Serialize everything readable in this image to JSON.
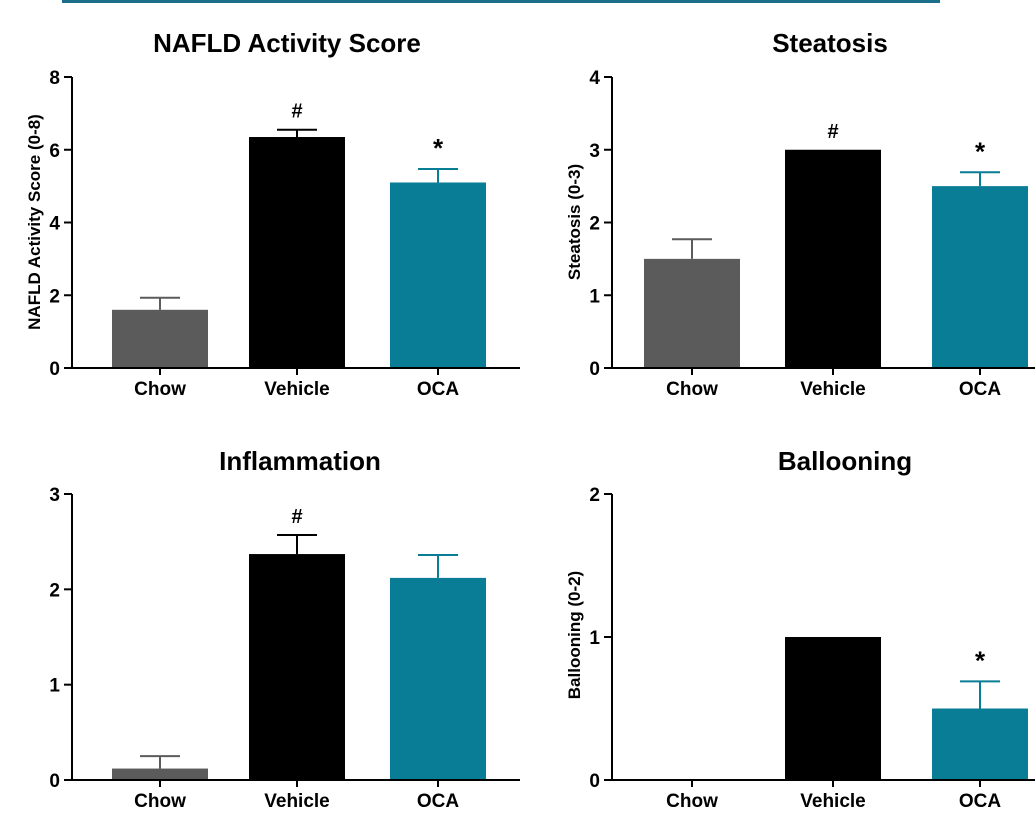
{
  "colors": {
    "chow": "#5b5b5b",
    "vehicle": "#000000",
    "oca": "#0a7d96",
    "axis": "#000000",
    "top_rule": "#1b6f8a"
  },
  "chart_data": [
    {
      "type": "bar",
      "title": "NAFLD Activity Score",
      "ylabel": "NAFLD Activity Score (0-8)",
      "xlabel": "",
      "categories": [
        "Chow",
        "Vehicle",
        "OCA"
      ],
      "values": [
        1.6,
        6.35,
        5.1
      ],
      "errors": [
        0.33,
        0.2,
        0.37
      ],
      "annotations": [
        "",
        "#",
        "*"
      ],
      "ylim": [
        0,
        8
      ],
      "yticks": [
        "0",
        "2",
        "4",
        "6",
        "8"
      ],
      "grid": false
    },
    {
      "type": "bar",
      "title": "Steatosis",
      "ylabel": "Steatosis (0-3)",
      "xlabel": "",
      "categories": [
        "Chow",
        "Vehicle",
        "OCA"
      ],
      "values": [
        1.5,
        3.0,
        2.5
      ],
      "errors": [
        0.27,
        0,
        0.19
      ],
      "annotations": [
        "",
        "#",
        "*"
      ],
      "ylim": [
        0,
        4
      ],
      "yticks": [
        "0",
        "1",
        "2",
        "3",
        "4"
      ],
      "grid": false
    },
    {
      "type": "bar",
      "title": "Inflammation",
      "ylabel": "",
      "xlabel": "",
      "categories": [
        "Chow",
        "Vehicle",
        "OCA"
      ],
      "values": [
        0.12,
        2.37,
        2.12
      ],
      "errors": [
        0.13,
        0.2,
        0.24
      ],
      "annotations": [
        "",
        "#",
        ""
      ],
      "ylim": [
        0,
        3
      ],
      "yticks": [
        "0",
        "1",
        "2",
        "3"
      ],
      "grid": false
    },
    {
      "type": "bar",
      "title": "Ballooning",
      "ylabel": "Ballooning (0-2)",
      "xlabel": "",
      "categories": [
        "Chow",
        "Vehicle",
        "OCA"
      ],
      "values": [
        0,
        1.0,
        0.5
      ],
      "errors": [
        0,
        0,
        0.19
      ],
      "annotations": [
        "",
        "",
        "*"
      ],
      "ylim": [
        0,
        2
      ],
      "yticks": [
        "0",
        "1",
        "2"
      ],
      "grid": false
    }
  ]
}
